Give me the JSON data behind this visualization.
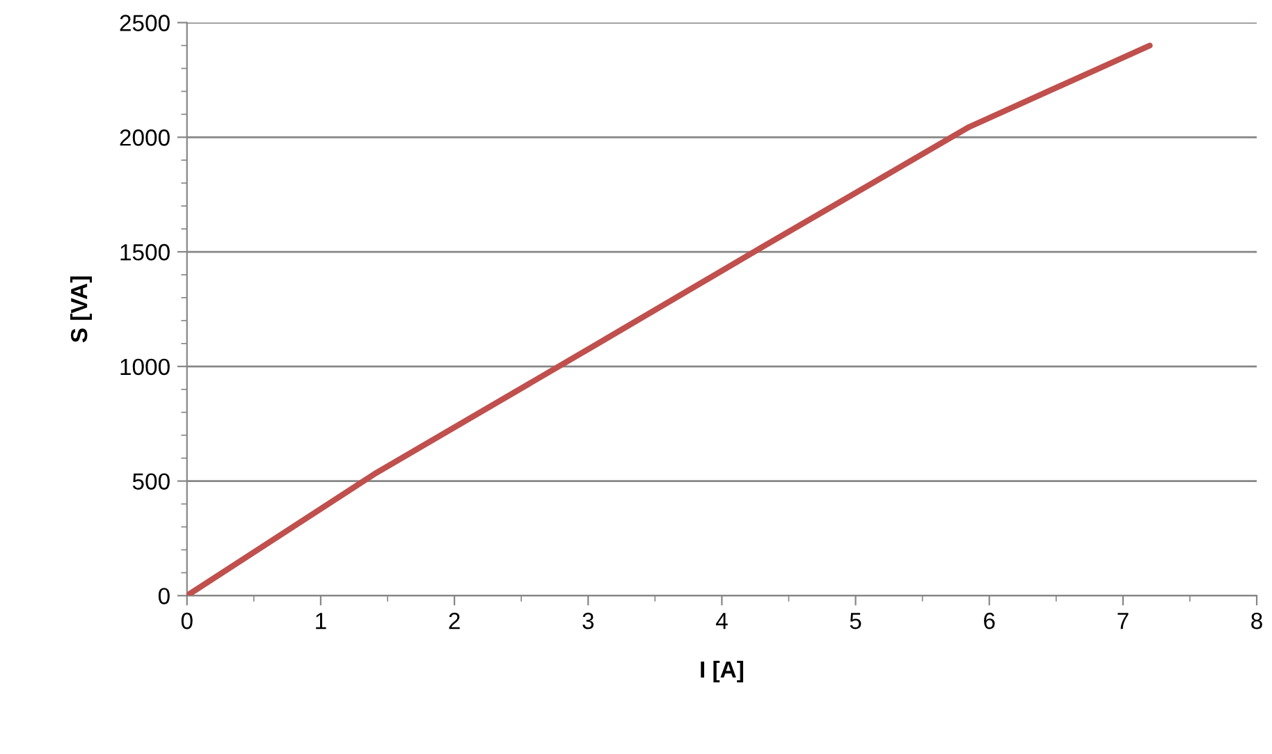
{
  "chart_data": {
    "type": "line",
    "xlabel": "I [A]",
    "ylabel": "S [VA]",
    "series": [
      {
        "color": "#c0504d",
        "x": [
          0,
          1.4,
          3.0,
          4.3,
          5.85,
          7.2
        ],
        "values": [
          0,
          530,
          1075,
          1520,
          2045,
          2400
        ]
      }
    ],
    "xlim": [
      0,
      8
    ],
    "xticks": [
      0,
      1,
      2,
      3,
      4,
      5,
      6,
      7,
      8
    ],
    "ylim": [
      0,
      2500
    ],
    "yticks": [
      0,
      500,
      1000,
      1500,
      2000,
      2500
    ],
    "grid": "y",
    "marker": "none",
    "line_style": "solid"
  }
}
